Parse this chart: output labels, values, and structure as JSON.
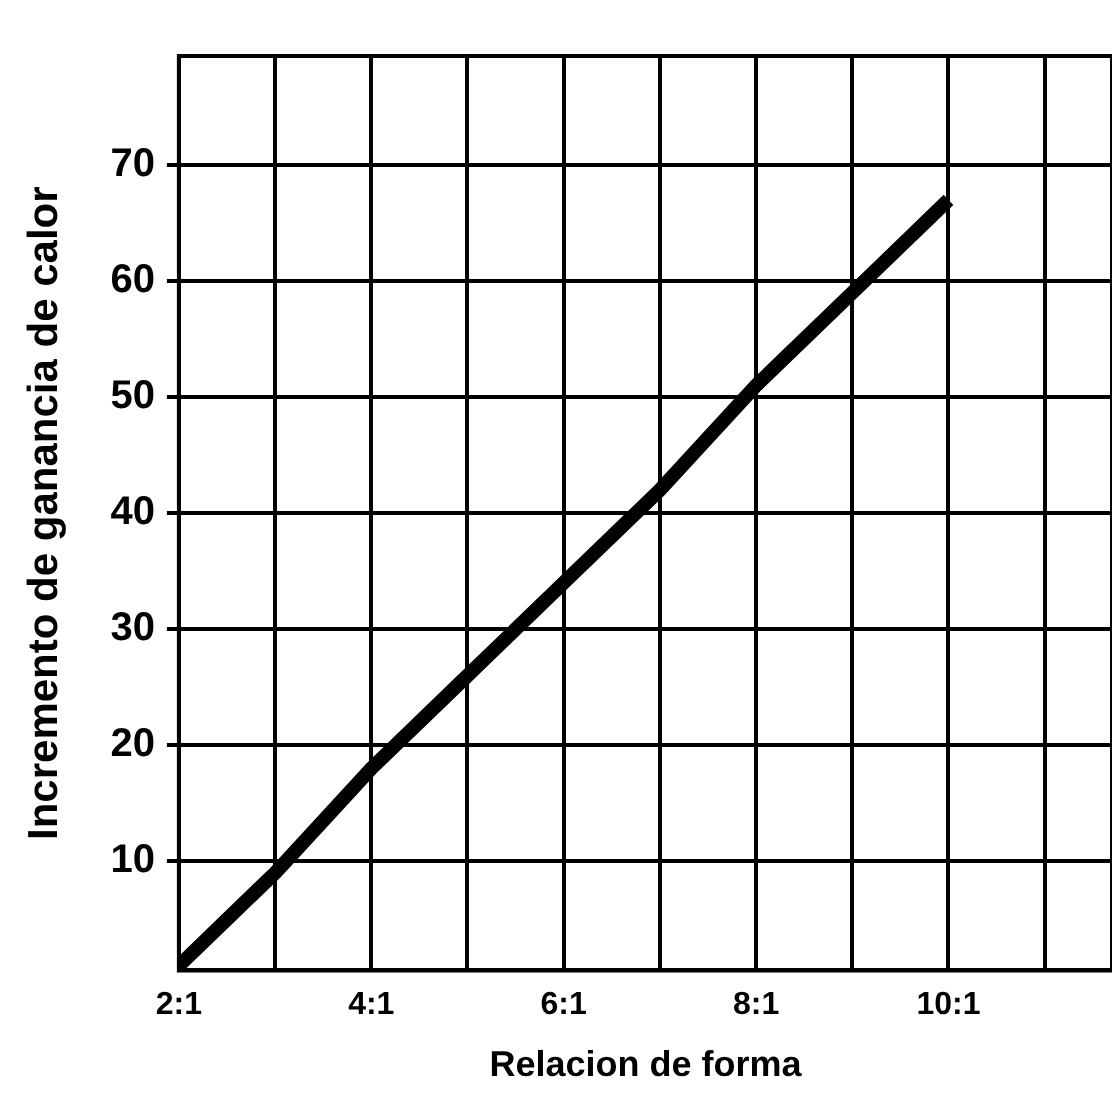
{
  "chart_data": {
    "type": "line",
    "xlabel": "Relacion de forma",
    "ylabel": "Incremento de ganancia de calor",
    "categories": [
      "2:1",
      null,
      "4:1",
      null,
      "6:1",
      null,
      "8:1",
      null,
      "10:1",
      null
    ],
    "series": [
      {
        "color": "#000000",
        "values": [
          1,
          9,
          18,
          26,
          34,
          42,
          51,
          59,
          67,
          null
        ]
      }
    ],
    "ylim": [
      0.6,
      79.4
    ],
    "yticks": [
      10,
      20,
      30,
      40,
      50,
      60,
      70
    ],
    "grid": true,
    "legend": false,
    "marker": "none",
    "line_style": "solid"
  }
}
